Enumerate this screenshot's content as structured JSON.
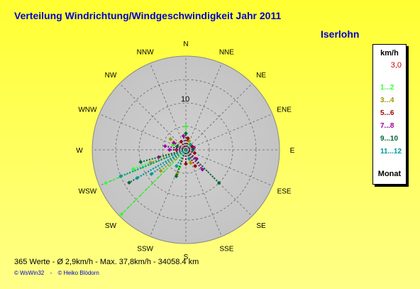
{
  "title": "Verteilung Windrichtung/Windgeschwindigkeit  Jahr 2011",
  "location": "Iserlohn",
  "legend": {
    "unit": "km/h",
    "calm_value": "3,0",
    "items": [
      {
        "label": "1...2",
        "color": "#33ff33"
      },
      {
        "label": "3...4",
        "color": "#999900"
      },
      {
        "label": "5...6",
        "color": "#990000"
      },
      {
        "label": "7...8",
        "color": "#990099"
      },
      {
        "label": "9...10",
        "color": "#006633"
      },
      {
        "label": "11...12",
        "color": "#009999"
      }
    ],
    "month_label": "Monat"
  },
  "stats": "365 Werte   -   Ø 2,9km/h  -  Max. 37,8km/h   -   34058.4 km",
  "credits": [
    "© WsWin32",
    "-",
    "© Heiko Blödorn"
  ],
  "chart_data": {
    "type": "scatter",
    "projection": "polar",
    "directions": [
      "N",
      "NNE",
      "NE",
      "ENE",
      "E",
      "ESE",
      "SE",
      "SSE",
      "S",
      "SSW",
      "SW",
      "WSW",
      "W",
      "WNW",
      "NW",
      "NNW"
    ],
    "radial_tick_label": "10",
    "radial_tick_value": 10,
    "radial_max": 20,
    "rings": 4,
    "grid": true,
    "series": [
      {
        "name": "1...2",
        "points": [
          {
            "dir": 247.5,
            "speed": 18.5
          },
          {
            "dir": 225,
            "speed": 19.5
          },
          {
            "dir": 250,
            "speed": 12
          },
          {
            "dir": 0,
            "speed": 5
          },
          {
            "dir": 290,
            "speed": 3
          },
          {
            "dir": 200,
            "speed": 4
          }
        ]
      },
      {
        "name": "3...4",
        "points": [
          {
            "dir": 305,
            "speed": 4
          },
          {
            "dir": 250,
            "speed": 8
          },
          {
            "dir": 200,
            "speed": 5.5
          },
          {
            "dir": 20,
            "speed": 2
          },
          {
            "dir": 160,
            "speed": 3
          },
          {
            "dir": 230,
            "speed": 7
          }
        ]
      },
      {
        "name": "5...6",
        "points": [
          {
            "dir": 60,
            "speed": 1.5
          },
          {
            "dir": 110,
            "speed": 2
          },
          {
            "dir": 180,
            "speed": 3
          },
          {
            "dir": 150,
            "speed": 4
          },
          {
            "dir": 330,
            "speed": 2
          },
          {
            "dir": 10,
            "speed": 2.5
          },
          {
            "dir": 270,
            "speed": 2
          }
        ]
      },
      {
        "name": "7...8",
        "points": [
          {
            "dir": 270,
            "speed": 3.5
          },
          {
            "dir": 280,
            "speed": 4.5
          },
          {
            "dir": 140,
            "speed": 5.5
          },
          {
            "dir": 350,
            "speed": 3
          },
          {
            "dir": 75,
            "speed": 1.8
          },
          {
            "dir": 255,
            "speed": 6
          },
          {
            "dir": 300,
            "speed": 3
          },
          {
            "dir": 130,
            "speed": 3
          }
        ]
      },
      {
        "name": "9...10",
        "points": [
          {
            "dir": 135,
            "speed": 10
          },
          {
            "dir": 255,
            "speed": 10
          },
          {
            "dir": 290,
            "speed": 2
          },
          {
            "dir": 0,
            "speed": 3.5
          },
          {
            "dir": 240,
            "speed": 14
          },
          {
            "dir": 200,
            "speed": 6
          },
          {
            "dir": 90,
            "speed": 1.5
          }
        ]
      },
      {
        "name": "11...12",
        "points": [
          {
            "dir": 240,
            "speed": 12
          },
          {
            "dir": 248,
            "speed": 15
          },
          {
            "dir": 235,
            "speed": 9
          },
          {
            "dir": 210,
            "speed": 4
          },
          {
            "dir": 40,
            "speed": 1.5
          },
          {
            "dir": 160,
            "speed": 2
          }
        ]
      }
    ]
  }
}
